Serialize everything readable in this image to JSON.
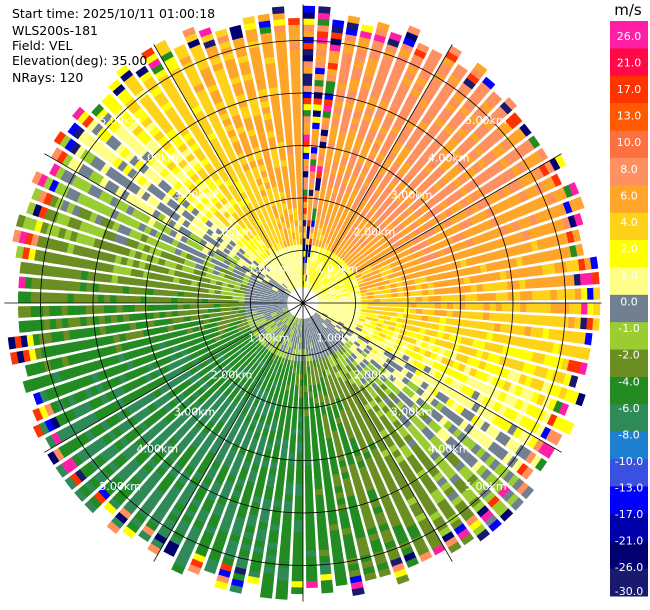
{
  "info": {
    "start_time": "Start time: 2025/10/11 01:00:18",
    "station": "WLS200s-181",
    "field": "Field: VEL",
    "elevation": "Elevation(deg): 35.00",
    "nrays": "NRays: 120"
  },
  "chart_data": {
    "type": "heatmap",
    "projection": "polar-ppi",
    "range_rings_km": [
      1,
      2,
      3,
      4,
      5
    ],
    "range_ring_labels": [
      "1.00km",
      "2.00km",
      "3.00km",
      "4.00km",
      "5.00km"
    ],
    "max_range_km": 5.65,
    "min_range_km": 0.3,
    "n_rays": 120,
    "colorbar": {
      "unit": "m/s",
      "ticks": [
        "26.0",
        "21.0",
        "17.0",
        "13.0",
        "10.0",
        "8.0",
        "6.0",
        "4.0",
        "2.0",
        "1.0",
        "0.0",
        "-1.0",
        "-2.0",
        "-4.0",
        "-6.0",
        "-8.0",
        "-10.0",
        "-13.0",
        "-17.0",
        "-21.0",
        "-26.0",
        "-30.0"
      ],
      "colors": [
        "#ff1fa7",
        "#ff0a47",
        "#ff3300",
        "#ff5a00",
        "#ff7040",
        "#ff9060",
        "#ffa52a",
        "#ffd21a",
        "#ffff00",
        "#ffff88",
        "#708090",
        "#9acd32",
        "#6b8e23",
        "#228b22",
        "#2e8b57",
        "#1e7fd0",
        "#3a50e0",
        "#0000ff",
        "#0000aa",
        "#000070",
        "#191970"
      ]
    },
    "field_model": {
      "positive_direction_deg": 35,
      "velocity_scale_ms": 6.5,
      "folding_zone_start_km": 5.2,
      "speckle_ray_azimuth_deg": 4
    }
  }
}
